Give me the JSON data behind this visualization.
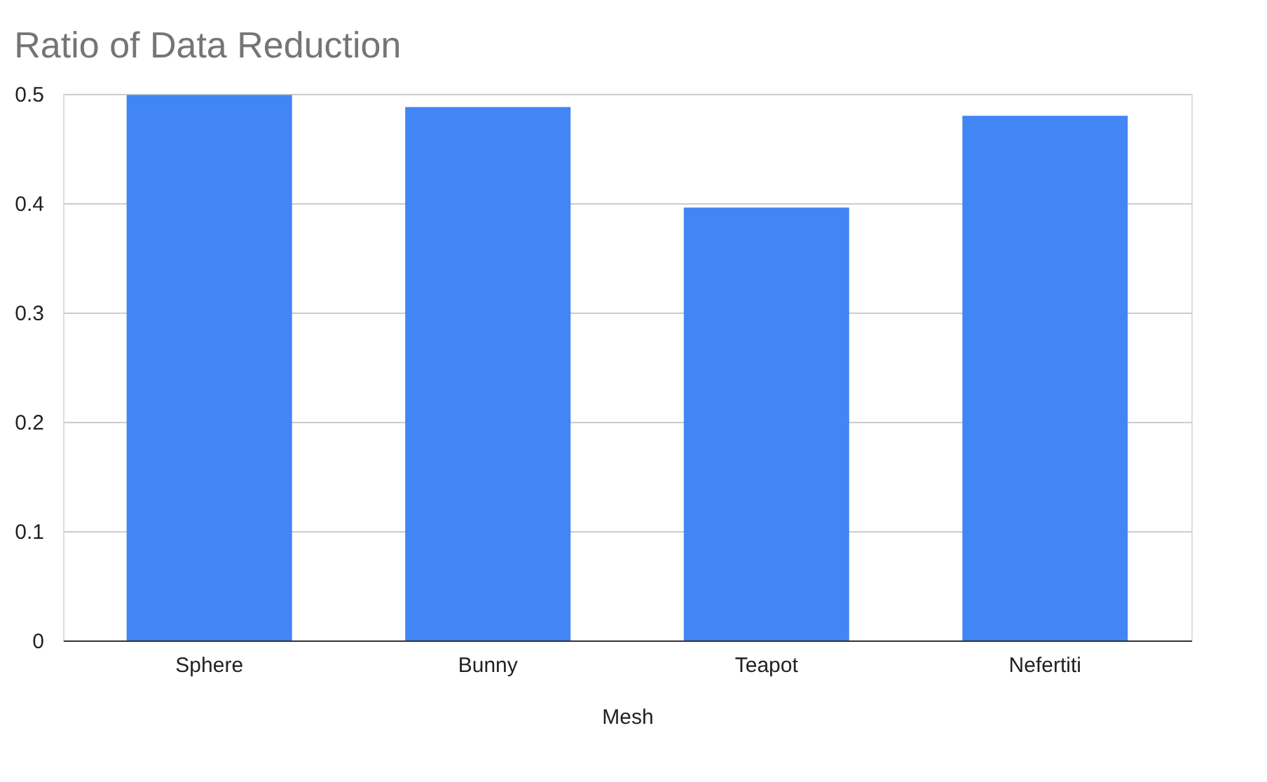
{
  "chart_data": {
    "type": "bar",
    "title": "Ratio of Data Reduction",
    "xlabel": "Mesh",
    "categories": [
      "Sphere",
      "Bunny",
      "Teapot",
      "Nefertiti"
    ],
    "values": [
      0.499,
      0.488,
      0.396,
      0.48
    ],
    "color": "#4285f4",
    "ylim": [
      0,
      0.5
    ],
    "yticks": [
      0,
      0.1,
      0.2,
      0.3,
      0.4,
      0.5
    ],
    "grid": "y"
  }
}
